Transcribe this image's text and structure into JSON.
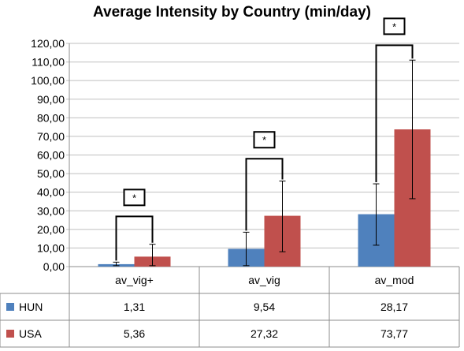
{
  "chart_data": {
    "type": "bar",
    "title": "Average Intensity by Country (min/day)",
    "categories": [
      "av_vig+",
      "av_vig",
      "av_mod"
    ],
    "series": [
      {
        "name": "HUN",
        "color": "#4f81bd",
        "values": [
          1.31,
          9.54,
          28.17
        ],
        "value_labels": [
          "1,31",
          "9,54",
          "28,17"
        ],
        "error_low": [
          0.5,
          0.5,
          11.5
        ],
        "error_high": [
          2.4,
          18.5,
          44.5
        ]
      },
      {
        "name": "USA",
        "color": "#c0504d",
        "values": [
          5.36,
          27.32,
          73.77
        ],
        "value_labels": [
          "5,36",
          "27,32",
          "73,77"
        ],
        "error_low": [
          0.5,
          8.0,
          36.5
        ],
        "error_high": [
          12.0,
          46.0,
          111.0
        ]
      }
    ],
    "ylim": [
      0,
      120
    ],
    "yticks": [
      "0,00",
      "10,00",
      "20,00",
      "30,00",
      "40,00",
      "50,00",
      "60,00",
      "70,00",
      "80,00",
      "90,00",
      "100,00",
      "110,00",
      "120,00"
    ],
    "grid": true,
    "data_table": true,
    "significance": [
      {
        "category": "av_vig+",
        "label": "*",
        "y": 27
      },
      {
        "category": "av_vig",
        "label": "*",
        "y": 58
      },
      {
        "category": "av_mod",
        "label": "*",
        "y": 119
      }
    ]
  }
}
